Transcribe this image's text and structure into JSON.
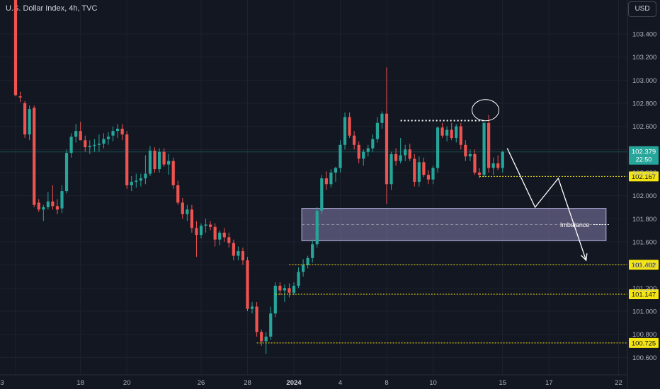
{
  "header": {
    "symbol_title": "U.S. Dollar Index, 4h, TVC",
    "currency": "USD"
  },
  "colors": {
    "background": "#131722",
    "up_candle": "#26a69a",
    "down_candle": "#ef5350",
    "grid": "#1e222d",
    "level_line": "#f5e613",
    "zone_fill": "#9c95c9",
    "annotation": "#ffffff",
    "current_price_label": "#26a69a"
  },
  "chart_data": {
    "type": "candlestick",
    "title": "U.S. Dollar Index, 4h, TVC",
    "xlabel": "",
    "ylabel": "",
    "ylim": [
      100.5,
      103.75
    ],
    "grid": true,
    "y_ticks": [
      "103.400",
      "103.200",
      "103.000",
      "102.800",
      "102.600",
      "102.400",
      "102.200",
      "102.000",
      "101.800",
      "101.600",
      "101.400",
      "101.200",
      "101.000",
      "100.800",
      "100.600"
    ],
    "x_ticks": [
      {
        "label": "3",
        "idx": 0
      },
      {
        "label": "18",
        "idx": 14
      },
      {
        "label": "20",
        "idx": 24
      },
      {
        "label": "26",
        "idx": 40
      },
      {
        "label": "28",
        "idx": 50
      },
      {
        "label": "2024",
        "idx": 60
      },
      {
        "label": "4",
        "idx": 70
      },
      {
        "label": "8",
        "idx": 80
      },
      {
        "label": "10",
        "idx": 90
      },
      {
        "label": "15",
        "idx": 105
      },
      {
        "label": "17",
        "idx": 115
      },
      {
        "label": "22",
        "idx": 130
      }
    ],
    "candles": [
      [
        103.75,
        103.75,
        102.86,
        102.87
      ],
      [
        102.86,
        102.9,
        102.81,
        102.85
      ],
      [
        102.8,
        102.82,
        102.5,
        102.53
      ],
      [
        102.53,
        102.78,
        102.48,
        102.75
      ],
      [
        102.76,
        102.78,
        101.9,
        101.92
      ],
      [
        101.94,
        101.97,
        101.86,
        101.88
      ],
      [
        101.88,
        101.92,
        101.78,
        101.9
      ],
      [
        101.9,
        102.03,
        101.88,
        101.95
      ],
      [
        101.95,
        102.09,
        101.88,
        101.91
      ],
      [
        101.91,
        101.97,
        101.84,
        101.88
      ],
      [
        101.89,
        102.09,
        101.85,
        102.04
      ],
      [
        102.04,
        102.4,
        102.02,
        102.37
      ],
      [
        102.37,
        102.54,
        102.33,
        102.51
      ],
      [
        102.51,
        102.62,
        102.46,
        102.56
      ],
      [
        102.56,
        102.64,
        102.48,
        102.48
      ],
      [
        102.48,
        102.52,
        102.38,
        102.42
      ],
      [
        102.42,
        102.48,
        102.36,
        102.43
      ],
      [
        102.43,
        102.49,
        102.38,
        102.44
      ],
      [
        102.44,
        102.53,
        102.38,
        102.45
      ],
      [
        102.45,
        102.54,
        102.41,
        102.49
      ],
      [
        102.49,
        102.55,
        102.44,
        102.51
      ],
      [
        102.52,
        102.6,
        102.47,
        102.56
      ],
      [
        102.56,
        102.62,
        102.5,
        102.58
      ],
      [
        102.58,
        102.62,
        102.48,
        102.53
      ],
      [
        102.53,
        102.56,
        102.06,
        102.09
      ],
      [
        102.09,
        102.17,
        102.04,
        102.12
      ],
      [
        102.12,
        102.19,
        102.07,
        102.13
      ],
      [
        102.13,
        102.19,
        102.08,
        102.15
      ],
      [
        102.15,
        102.35,
        102.1,
        102.19
      ],
      [
        102.19,
        102.43,
        102.17,
        102.39
      ],
      [
        102.39,
        102.42,
        102.2,
        102.23
      ],
      [
        102.23,
        102.41,
        102.2,
        102.38
      ],
      [
        102.38,
        102.41,
        102.25,
        102.27
      ],
      [
        102.27,
        102.36,
        102.18,
        102.3
      ],
      [
        102.3,
        102.33,
        102.06,
        102.09
      ],
      [
        102.09,
        102.13,
        101.92,
        101.94
      ],
      [
        101.94,
        101.98,
        101.8,
        101.84
      ],
      [
        101.84,
        101.92,
        101.78,
        101.88
      ],
      [
        101.88,
        101.92,
        101.68,
        101.72
      ],
      [
        101.72,
        101.78,
        101.47,
        101.66
      ],
      [
        101.66,
        101.76,
        101.63,
        101.74
      ],
      [
        101.74,
        101.8,
        101.68,
        101.75
      ],
      [
        101.75,
        101.78,
        101.7,
        101.73
      ],
      [
        101.73,
        101.76,
        101.56,
        101.62
      ],
      [
        101.62,
        101.7,
        101.57,
        101.68
      ],
      [
        101.68,
        101.72,
        101.6,
        101.64
      ],
      [
        101.64,
        101.68,
        101.55,
        101.59
      ],
      [
        101.59,
        101.62,
        101.44,
        101.48
      ],
      [
        101.48,
        101.56,
        101.44,
        101.52
      ],
      [
        101.52,
        101.55,
        101.4,
        101.44
      ],
      [
        101.44,
        101.47,
        101.0,
        101.02
      ],
      [
        101.02,
        101.08,
        100.98,
        101.04
      ],
      [
        101.04,
        101.08,
        100.78,
        100.82
      ],
      [
        100.82,
        100.84,
        100.7,
        100.74
      ],
      [
        100.74,
        100.82,
        100.63,
        100.78
      ],
      [
        100.78,
        101.04,
        100.75,
        100.98
      ],
      [
        100.98,
        101.25,
        100.95,
        101.22
      ],
      [
        101.22,
        101.25,
        101.14,
        101.18
      ],
      [
        101.18,
        101.23,
        101.08,
        101.2
      ],
      [
        101.2,
        101.24,
        101.12,
        101.16
      ],
      [
        101.16,
        101.25,
        101.14,
        101.22
      ],
      [
        101.22,
        101.38,
        101.2,
        101.34
      ],
      [
        101.34,
        101.45,
        101.3,
        101.4
      ],
      [
        101.4,
        101.48,
        101.37,
        101.46
      ],
      [
        101.46,
        101.62,
        101.42,
        101.58
      ],
      [
        101.58,
        101.9,
        101.55,
        101.87
      ],
      [
        101.87,
        102.18,
        101.84,
        102.15
      ],
      [
        102.15,
        102.21,
        102.05,
        102.1
      ],
      [
        102.1,
        102.23,
        102.07,
        102.2
      ],
      [
        102.2,
        102.25,
        102.12,
        102.24
      ],
      [
        102.24,
        102.48,
        102.2,
        102.44
      ],
      [
        102.44,
        102.72,
        102.4,
        102.68
      ],
      [
        102.68,
        102.72,
        102.5,
        102.52
      ],
      [
        102.52,
        102.56,
        102.4,
        102.44
      ],
      [
        102.44,
        102.47,
        102.28,
        102.32
      ],
      [
        102.32,
        102.4,
        102.26,
        102.38
      ],
      [
        102.38,
        102.44,
        102.34,
        102.41
      ],
      [
        102.41,
        102.53,
        102.38,
        102.49
      ],
      [
        102.49,
        102.68,
        102.46,
        102.63
      ],
      [
        102.63,
        102.73,
        102.58,
        102.71
      ],
      [
        102.71,
        103.11,
        101.93,
        102.1
      ],
      [
        102.1,
        102.38,
        102.05,
        102.36
      ],
      [
        102.36,
        102.41,
        102.26,
        102.3
      ],
      [
        102.3,
        102.5,
        102.28,
        102.35
      ],
      [
        102.35,
        102.44,
        102.3,
        102.4
      ],
      [
        102.4,
        102.45,
        102.3,
        102.32
      ],
      [
        102.32,
        102.36,
        102.08,
        102.12
      ],
      [
        102.12,
        102.34,
        102.08,
        102.29
      ],
      [
        102.29,
        102.33,
        102.16,
        102.18
      ],
      [
        102.18,
        102.22,
        102.1,
        102.14
      ],
      [
        102.14,
        102.26,
        102.1,
        102.24
      ],
      [
        102.24,
        102.6,
        102.2,
        102.59
      ],
      [
        102.59,
        102.63,
        102.5,
        102.52
      ],
      [
        102.52,
        102.6,
        102.47,
        102.57
      ],
      [
        102.57,
        102.63,
        102.48,
        102.5
      ],
      [
        102.5,
        102.62,
        102.46,
        102.6
      ],
      [
        102.6,
        102.63,
        102.4,
        102.44
      ],
      [
        102.44,
        102.48,
        102.3,
        102.34
      ],
      [
        102.34,
        102.4,
        102.3,
        102.36
      ],
      [
        102.36,
        102.4,
        102.18,
        102.2
      ],
      [
        102.2,
        102.24,
        102.15,
        102.18
      ],
      [
        102.18,
        102.64,
        102.16,
        102.63
      ],
      [
        102.63,
        102.7,
        102.2,
        102.24
      ],
      [
        102.24,
        102.33,
        102.18,
        102.28
      ],
      [
        102.28,
        102.35,
        102.22,
        102.24
      ],
      [
        102.24,
        102.39,
        102.2,
        102.38
      ]
    ],
    "current_price": "102.379",
    "countdown": "22:50",
    "levels": [
      {
        "price": 102.65,
        "label": "",
        "style": "dotted-white",
        "from_idx": 83,
        "to_idx": 101
      },
      {
        "price": 102.167,
        "label": "102.167"
      },
      {
        "price": 101.402,
        "label": "101.402"
      },
      {
        "price": 101.147,
        "label": "101.147"
      },
      {
        "price": 100.725,
        "label": "100.725"
      }
    ],
    "zone": {
      "label": "Imbalance",
      "price_top": 101.89,
      "price_bottom": 101.61,
      "from_idx": 62,
      "to_idx": 127
    },
    "projection_path": [
      {
        "idx": 106,
        "price": 102.41
      },
      {
        "idx": 112,
        "price": 101.9
      },
      {
        "idx": 117,
        "price": 102.15
      },
      {
        "idx": 123,
        "price": 101.44
      }
    ],
    "circle_marker": {
      "idx": 101,
      "price": 102.74
    }
  }
}
